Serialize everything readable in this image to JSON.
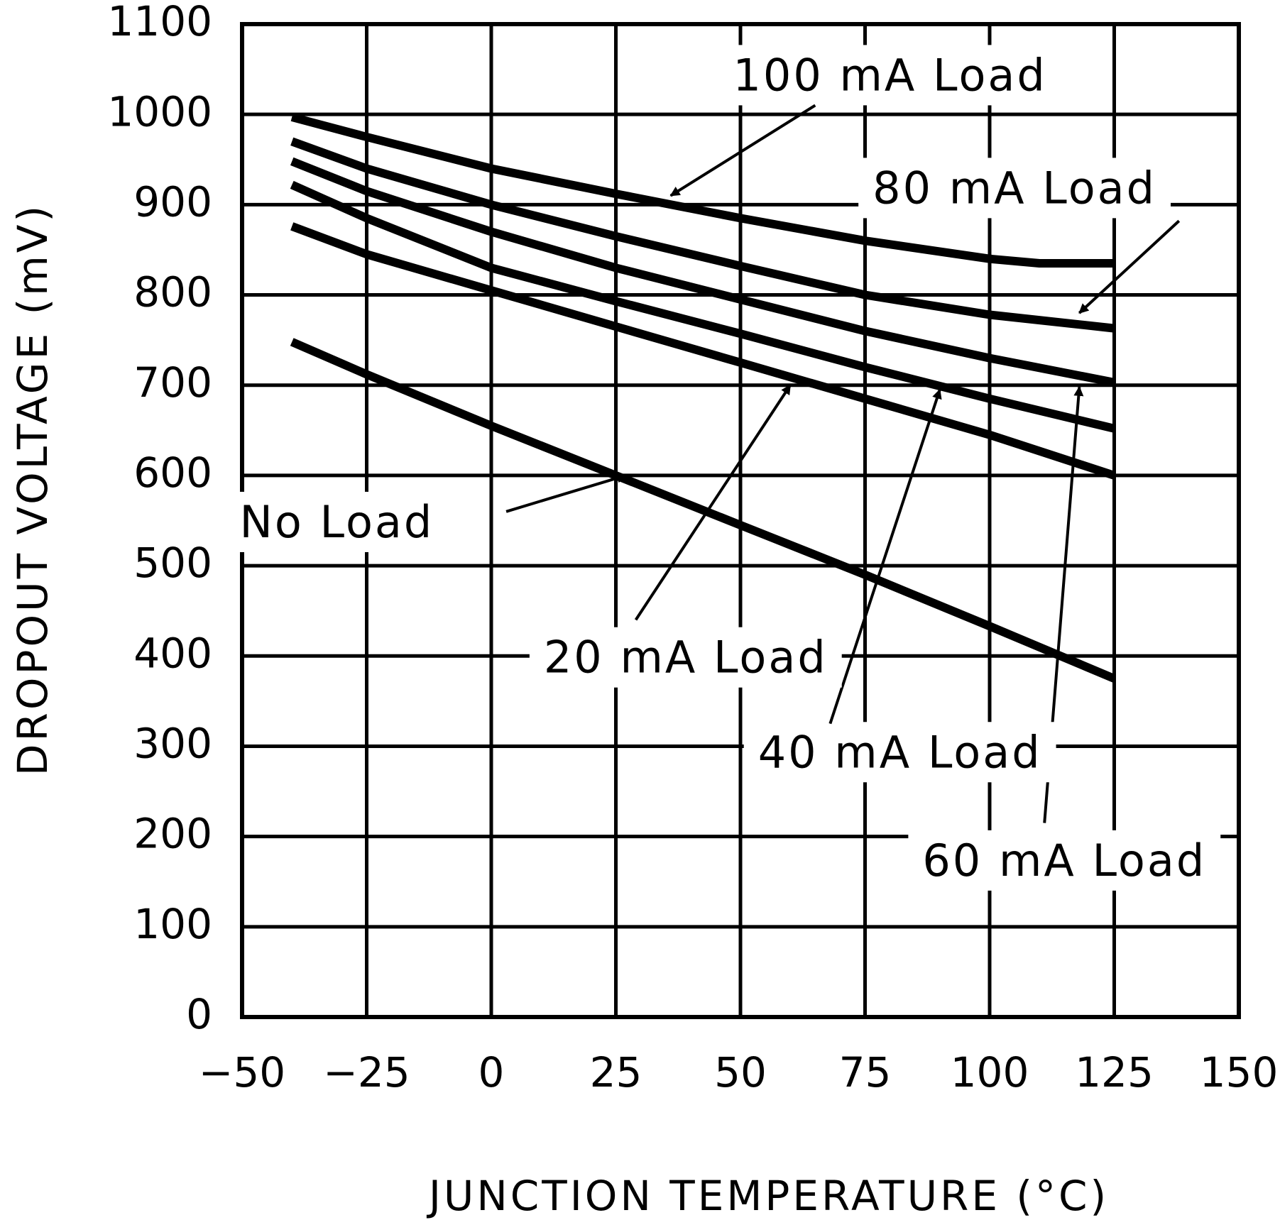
{
  "chart_data": {
    "type": "line",
    "title": "",
    "xlabel": "JUNCTION TEMPERATURE (°C)",
    "ylabel": "DROPOUT VOLTAGE (mV)",
    "xlim": [
      -50,
      150
    ],
    "ylim": [
      0,
      1100
    ],
    "xticks": [
      -50,
      -25,
      0,
      25,
      50,
      75,
      100,
      125,
      150
    ],
    "xtick_labels": [
      "−50",
      "−25",
      "0",
      "25",
      "50",
      "75",
      "100",
      "125",
      "150"
    ],
    "yticks": [
      0,
      100,
      200,
      300,
      400,
      500,
      600,
      700,
      800,
      900,
      1000,
      1100
    ],
    "ytick_labels": [
      "0",
      "100",
      "200",
      "300",
      "400",
      "500",
      "600",
      "700",
      "800",
      "900",
      "1000",
      "1100"
    ],
    "grid": true,
    "series": [
      {
        "name": "100 mA Load",
        "x": [
          -40,
          -25,
          0,
          25,
          50,
          75,
          100,
          110,
          125
        ],
        "y": [
          997,
          975,
          940,
          912,
          885,
          860,
          840,
          835,
          835
        ]
      },
      {
        "name": "80 mA Load",
        "x": [
          -40,
          -25,
          0,
          25,
          50,
          75,
          100,
          125
        ],
        "y": [
          970,
          940,
          900,
          865,
          832,
          800,
          778,
          763
        ]
      },
      {
        "name": "60 mA Load",
        "x": [
          -40,
          -25,
          0,
          25,
          50,
          75,
          100,
          125
        ],
        "y": [
          948,
          915,
          870,
          830,
          795,
          760,
          730,
          703
        ]
      },
      {
        "name": "40 mA Load",
        "x": [
          -40,
          -25,
          0,
          25,
          50,
          75,
          100,
          125
        ],
        "y": [
          922,
          885,
          830,
          793,
          757,
          720,
          685,
          652
        ]
      },
      {
        "name": "20 mA Load",
        "x": [
          -40,
          -25,
          0,
          25,
          50,
          75,
          100,
          125
        ],
        "y": [
          876,
          845,
          805,
          765,
          725,
          685,
          645,
          600
        ]
      },
      {
        "name": "No Load",
        "x": [
          -40,
          -25,
          0,
          25,
          50,
          75,
          100,
          125
        ],
        "y": [
          748,
          712,
          655,
          600,
          545,
          490,
          433,
          375
        ]
      }
    ],
    "annotations": [
      {
        "series": "100 mA Load",
        "text": "100 mA Load",
        "text_at": [
          80,
          1040
        ],
        "arrow_from": [
          65,
          1010
        ],
        "arrow_to": [
          36,
          910
        ]
      },
      {
        "series": "80 mA Load",
        "text": "80 mA Load",
        "text_at": [
          105,
          915
        ],
        "arrow_from": [
          138,
          882
        ],
        "arrow_to": [
          118,
          780
        ]
      },
      {
        "series": "60 mA Load",
        "text": "60 mA Load",
        "text_at": [
          115,
          170
        ],
        "arrow_from": [
          111,
          215
        ],
        "arrow_to": [
          118,
          698
        ]
      },
      {
        "series": "40 mA Load",
        "text": "40 mA Load",
        "text_at": [
          82,
          290
        ],
        "arrow_from": [
          68,
          325
        ],
        "arrow_to": [
          90,
          695
        ]
      },
      {
        "series": "20 mA Load",
        "text": "20 mA Load",
        "text_at": [
          39,
          395
        ],
        "arrow_from": [
          29,
          440
        ],
        "arrow_to": [
          60,
          700
        ]
      },
      {
        "series": "No Load",
        "text": "No Load",
        "text_at": [
          -31,
          545
        ],
        "arrow_from": [
          3,
          560
        ],
        "arrow_to": [
          27,
          600
        ]
      }
    ]
  }
}
